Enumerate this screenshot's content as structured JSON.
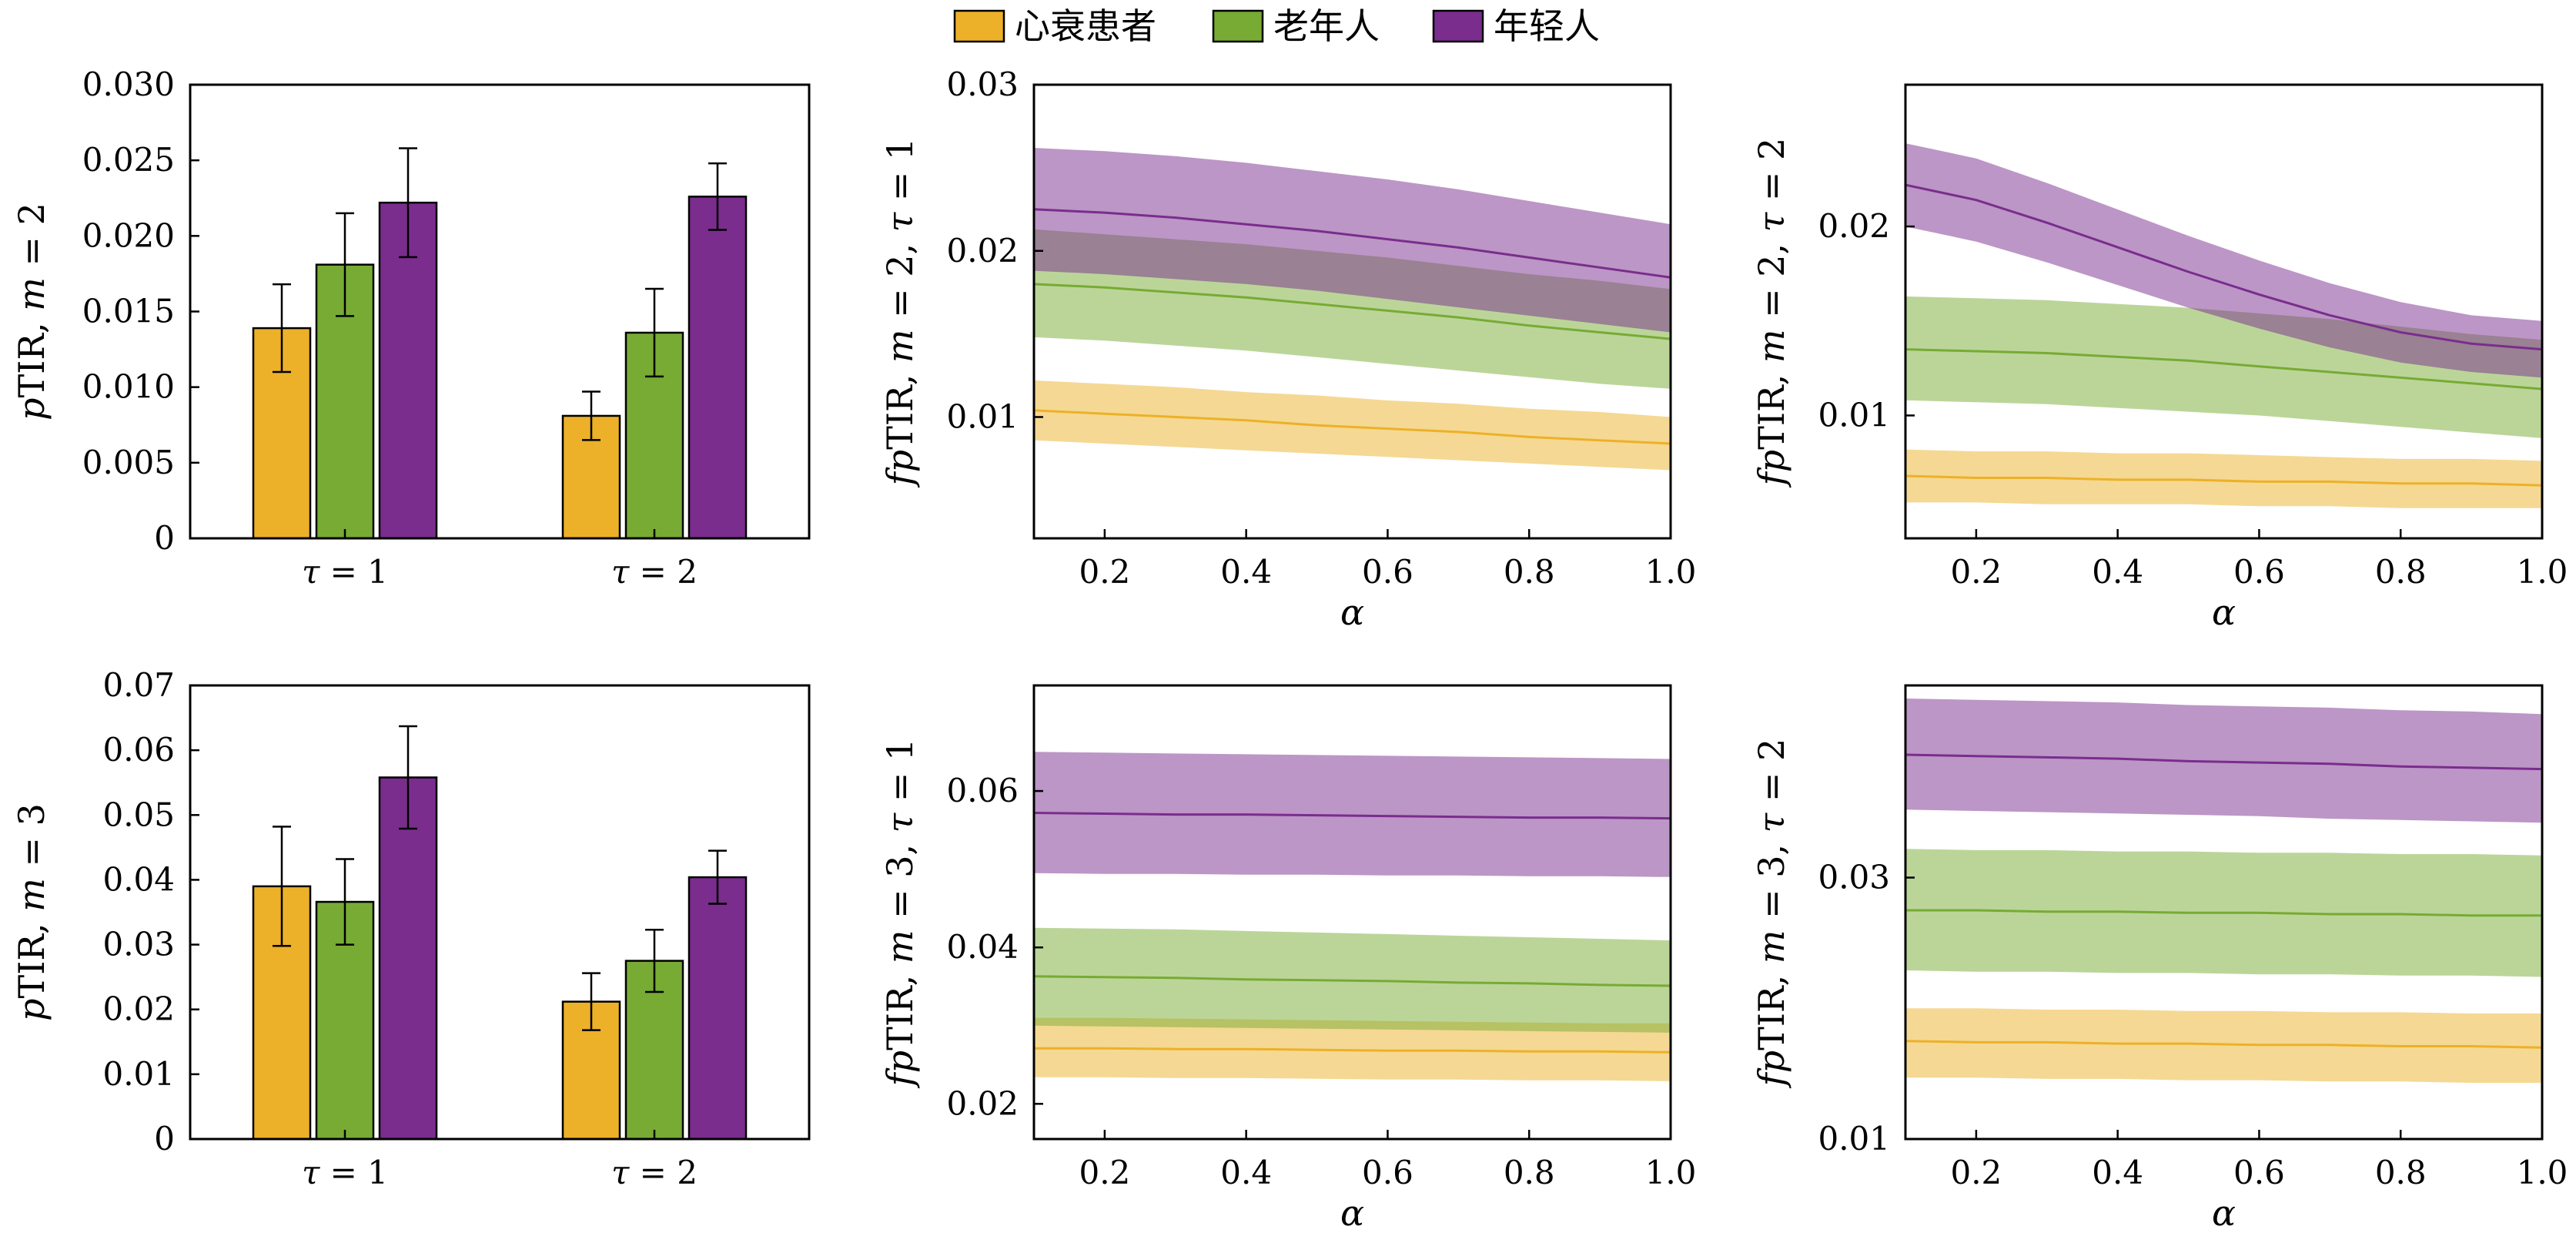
{
  "legend": {
    "items": [
      {
        "label": "心衰患者",
        "color": "#ecb128"
      },
      {
        "label": "老年人",
        "color": "#77ab34"
      },
      {
        "label": "年轻人",
        "color": "#7a2d8d"
      }
    ]
  },
  "chart_data": [
    {
      "type": "bar",
      "panel": "top-left",
      "ylabel": "pTIR, m = 2",
      "categories": [
        "τ = 1",
        "τ = 2"
      ],
      "ylim": [
        0,
        0.03
      ],
      "yticks": [
        0,
        0.005,
        0.01,
        0.015,
        0.02,
        0.025,
        0.03
      ],
      "ytick_labels": [
        "0",
        "0.005",
        "0.010",
        "0.015",
        "0.020",
        "0.025",
        "0.030"
      ],
      "series": [
        {
          "name": "心衰患者",
          "color": "#ecb128",
          "values": [
            0.0139,
            0.0081
          ],
          "errors": [
            0.0029,
            0.0016
          ]
        },
        {
          "name": "老年人",
          "color": "#77ab34",
          "values": [
            0.0181,
            0.0136
          ],
          "errors": [
            0.0034,
            0.0029
          ]
        },
        {
          "name": "年轻人",
          "color": "#7a2d8d",
          "values": [
            0.0222,
            0.0226
          ],
          "errors": [
            0.0036,
            0.0022
          ]
        }
      ]
    },
    {
      "type": "area",
      "panel": "top-middle",
      "xlabel": "α",
      "ylabel": "fpTIR, m = 2, τ = 1",
      "xlim": [
        0.1,
        1.0
      ],
      "ylim": [
        0.0027,
        0.03
      ],
      "xticks": [
        0.2,
        0.4,
        0.6,
        0.8,
        1.0
      ],
      "xtick_labels": [
        "0.2",
        "0.4",
        "0.6",
        "0.8",
        "1.0"
      ],
      "yticks": [
        0.01,
        0.02,
        0.03
      ],
      "ytick_labels": [
        "0.01",
        "0.02",
        "0.03"
      ],
      "x": [
        0.1,
        0.2,
        0.3,
        0.4,
        0.5,
        0.6,
        0.7,
        0.8,
        0.9,
        1.0
      ],
      "series": [
        {
          "name": "心衰患者",
          "color": "#ecb128",
          "mean": [
            0.0104,
            0.0102,
            0.01,
            0.0098,
            0.0095,
            0.0093,
            0.0091,
            0.0088,
            0.0086,
            0.0084
          ],
          "lower": [
            0.0086,
            0.0084,
            0.0082,
            0.008,
            0.0078,
            0.0076,
            0.0074,
            0.0072,
            0.007,
            0.0068
          ],
          "upper": [
            0.0122,
            0.012,
            0.0118,
            0.0115,
            0.0113,
            0.011,
            0.0108,
            0.0105,
            0.0103,
            0.01
          ]
        },
        {
          "name": "老年人",
          "color": "#77ab34",
          "mean": [
            0.018,
            0.0178,
            0.0175,
            0.0172,
            0.0168,
            0.0164,
            0.016,
            0.0155,
            0.0151,
            0.0147
          ],
          "lower": [
            0.0148,
            0.0146,
            0.0143,
            0.014,
            0.0136,
            0.0132,
            0.0128,
            0.0124,
            0.012,
            0.0117
          ],
          "upper": [
            0.0213,
            0.021,
            0.0207,
            0.0204,
            0.02,
            0.0196,
            0.0191,
            0.0186,
            0.0182,
            0.0177
          ]
        },
        {
          "name": "年轻人",
          "color": "#7a2d8d",
          "mean": [
            0.0225,
            0.0223,
            0.022,
            0.0216,
            0.0212,
            0.0207,
            0.0202,
            0.0196,
            0.019,
            0.0184
          ],
          "lower": [
            0.0188,
            0.0186,
            0.0183,
            0.018,
            0.0176,
            0.0171,
            0.0166,
            0.0161,
            0.0156,
            0.0151
          ],
          "upper": [
            0.0262,
            0.026,
            0.0257,
            0.0253,
            0.0248,
            0.0243,
            0.0237,
            0.023,
            0.0223,
            0.0216
          ]
        }
      ]
    },
    {
      "type": "area",
      "panel": "top-right",
      "xlabel": "α",
      "ylabel": "fpTIR, m = 2, τ = 2",
      "xlim": [
        0.1,
        1.0
      ],
      "ylim": [
        0.0035,
        0.0275
      ],
      "xticks": [
        0.2,
        0.4,
        0.6,
        0.8,
        1.0
      ],
      "xtick_labels": [
        "0.2",
        "0.4",
        "0.6",
        "0.8",
        "1.0"
      ],
      "yticks": [
        0.01,
        0.02
      ],
      "ytick_labels": [
        "0.01",
        "0.02"
      ],
      "x": [
        0.1,
        0.2,
        0.3,
        0.4,
        0.5,
        0.6,
        0.7,
        0.8,
        0.9,
        1.0
      ],
      "series": [
        {
          "name": "心衰患者",
          "color": "#ecb128",
          "mean": [
            0.0068,
            0.0067,
            0.0067,
            0.0066,
            0.0066,
            0.0065,
            0.0065,
            0.0064,
            0.0064,
            0.0063
          ],
          "lower": [
            0.0054,
            0.0054,
            0.0053,
            0.0053,
            0.0053,
            0.0052,
            0.0052,
            0.0051,
            0.0051,
            0.0051
          ],
          "upper": [
            0.0082,
            0.0081,
            0.0081,
            0.008,
            0.008,
            0.0079,
            0.0078,
            0.0077,
            0.0077,
            0.0076
          ]
        },
        {
          "name": "老年人",
          "color": "#77ab34",
          "mean": [
            0.0135,
            0.0134,
            0.0133,
            0.0131,
            0.0129,
            0.0126,
            0.0123,
            0.012,
            0.0117,
            0.0114
          ],
          "lower": [
            0.0108,
            0.0107,
            0.0106,
            0.0104,
            0.0102,
            0.01,
            0.0097,
            0.0094,
            0.0091,
            0.0088
          ],
          "upper": [
            0.0163,
            0.0162,
            0.0161,
            0.0159,
            0.0157,
            0.0154,
            0.0151,
            0.0147,
            0.0143,
            0.014
          ]
        },
        {
          "name": "年轻人",
          "color": "#7a2d8d",
          "mean": [
            0.0222,
            0.0214,
            0.0202,
            0.0189,
            0.0176,
            0.0164,
            0.0153,
            0.0144,
            0.0138,
            0.0135
          ],
          "lower": [
            0.02,
            0.0192,
            0.0181,
            0.0169,
            0.0157,
            0.0146,
            0.0136,
            0.0128,
            0.0123,
            0.012
          ],
          "upper": [
            0.0244,
            0.0236,
            0.0223,
            0.0209,
            0.0195,
            0.0182,
            0.017,
            0.016,
            0.0153,
            0.015
          ]
        }
      ]
    },
    {
      "type": "bar",
      "panel": "bottom-left",
      "ylabel": "pTIR, m = 3",
      "categories": [
        "τ = 1",
        "τ = 2"
      ],
      "ylim": [
        0,
        0.07
      ],
      "yticks": [
        0,
        0.01,
        0.02,
        0.03,
        0.04,
        0.05,
        0.06,
        0.07
      ],
      "ytick_labels": [
        "0",
        "0.01",
        "0.02",
        "0.03",
        "0.04",
        "0.05",
        "0.06",
        "0.07"
      ],
      "series": [
        {
          "name": "心衰患者",
          "color": "#ecb128",
          "values": [
            0.039,
            0.0212
          ],
          "errors": [
            0.0092,
            0.0044
          ]
        },
        {
          "name": "老年人",
          "color": "#77ab34",
          "values": [
            0.0366,
            0.0275
          ],
          "errors": [
            0.0066,
            0.0048
          ]
        },
        {
          "name": "年轻人",
          "color": "#7a2d8d",
          "values": [
            0.0558,
            0.0404
          ],
          "errors": [
            0.0079,
            0.0041
          ]
        }
      ]
    },
    {
      "type": "area",
      "panel": "bottom-middle",
      "xlabel": "α",
      "ylabel": "fpTIR, m = 3, τ = 1",
      "xlim": [
        0.1,
        1.0
      ],
      "ylim": [
        0.0155,
        0.0735
      ],
      "xticks": [
        0.2,
        0.4,
        0.6,
        0.8,
        1.0
      ],
      "xtick_labels": [
        "0.2",
        "0.4",
        "0.6",
        "0.8",
        "1.0"
      ],
      "yticks": [
        0.02,
        0.04,
        0.06
      ],
      "ytick_labels": [
        "0.02",
        "0.04",
        "0.06"
      ],
      "x": [
        0.1,
        0.2,
        0.3,
        0.4,
        0.5,
        0.6,
        0.7,
        0.8,
        0.9,
        1.0
      ],
      "series": [
        {
          "name": "心衰患者",
          "color": "#ecb128",
          "mean": [
            0.0271,
            0.0271,
            0.027,
            0.027,
            0.0269,
            0.0268,
            0.0268,
            0.0267,
            0.0267,
            0.0266
          ],
          "lower": [
            0.0234,
            0.0234,
            0.0233,
            0.0233,
            0.0232,
            0.0231,
            0.0231,
            0.023,
            0.023,
            0.0229
          ],
          "upper": [
            0.031,
            0.031,
            0.0309,
            0.0308,
            0.0307,
            0.0306,
            0.0305,
            0.0304,
            0.0303,
            0.0303
          ]
        },
        {
          "name": "老年人",
          "color": "#77ab34",
          "mean": [
            0.0363,
            0.0362,
            0.0361,
            0.0359,
            0.0358,
            0.0357,
            0.0355,
            0.0354,
            0.0352,
            0.0351
          ],
          "lower": [
            0.03,
            0.0299,
            0.0298,
            0.0297,
            0.0296,
            0.0295,
            0.0294,
            0.0293,
            0.0292,
            0.0291
          ],
          "upper": [
            0.0425,
            0.0424,
            0.0423,
            0.0421,
            0.0419,
            0.0417,
            0.0415,
            0.0413,
            0.0411,
            0.0409
          ]
        },
        {
          "name": "年轻人",
          "color": "#7a2d8d",
          "mean": [
            0.0572,
            0.0571,
            0.057,
            0.057,
            0.0569,
            0.0568,
            0.0567,
            0.0566,
            0.0566,
            0.0565
          ],
          "lower": [
            0.0495,
            0.0494,
            0.0494,
            0.0493,
            0.0493,
            0.0492,
            0.0492,
            0.0491,
            0.0491,
            0.049
          ],
          "upper": [
            0.065,
            0.0649,
            0.0648,
            0.0647,
            0.0646,
            0.0645,
            0.0644,
            0.0643,
            0.0642,
            0.0641
          ]
        }
      ]
    },
    {
      "type": "area",
      "panel": "bottom-right",
      "xlabel": "α",
      "ylabel": "fpTIR, m = 3, τ = 2",
      "xlim": [
        0.1,
        1.0
      ],
      "ylim": [
        0.01,
        0.0447
      ],
      "xticks": [
        0.2,
        0.4,
        0.6,
        0.8,
        1.0
      ],
      "xtick_labels": [
        "0.2",
        "0.4",
        "0.6",
        "0.8",
        "1.0"
      ],
      "yticks": [
        0.01,
        0.03
      ],
      "ytick_labels": [
        "0.01",
        "0.03"
      ],
      "x": [
        0.1,
        0.2,
        0.3,
        0.4,
        0.5,
        0.6,
        0.7,
        0.8,
        0.9,
        1.0
      ],
      "series": [
        {
          "name": "心衰患者",
          "color": "#ecb128",
          "mean": [
            0.0175,
            0.0174,
            0.0174,
            0.0173,
            0.0173,
            0.0172,
            0.0172,
            0.0171,
            0.0171,
            0.017
          ],
          "lower": [
            0.0147,
            0.0147,
            0.0146,
            0.0146,
            0.0145,
            0.0145,
            0.0144,
            0.0144,
            0.0143,
            0.0143
          ],
          "upper": [
            0.02,
            0.02,
            0.0199,
            0.0199,
            0.0198,
            0.0198,
            0.0197,
            0.0197,
            0.0196,
            0.0196
          ]
        },
        {
          "name": "老年人",
          "color": "#77ab34",
          "mean": [
            0.0275,
            0.0275,
            0.0274,
            0.0274,
            0.0273,
            0.0273,
            0.0272,
            0.0272,
            0.0271,
            0.0271
          ],
          "lower": [
            0.0229,
            0.0228,
            0.0228,
            0.0227,
            0.0227,
            0.0226,
            0.0226,
            0.0225,
            0.0225,
            0.0224
          ],
          "upper": [
            0.0322,
            0.0321,
            0.0321,
            0.032,
            0.032,
            0.0319,
            0.0319,
            0.0318,
            0.0318,
            0.0317
          ]
        },
        {
          "name": "年轻人",
          "color": "#7a2d8d",
          "mean": [
            0.0394,
            0.0393,
            0.0392,
            0.0391,
            0.0389,
            0.0388,
            0.0387,
            0.0385,
            0.0384,
            0.0383
          ],
          "lower": [
            0.0352,
            0.0351,
            0.035,
            0.0349,
            0.0348,
            0.0347,
            0.0345,
            0.0344,
            0.0343,
            0.0342
          ],
          "upper": [
            0.0437,
            0.0436,
            0.0435,
            0.0434,
            0.0432,
            0.0431,
            0.043,
            0.0428,
            0.0427,
            0.0425
          ]
        }
      ]
    }
  ]
}
